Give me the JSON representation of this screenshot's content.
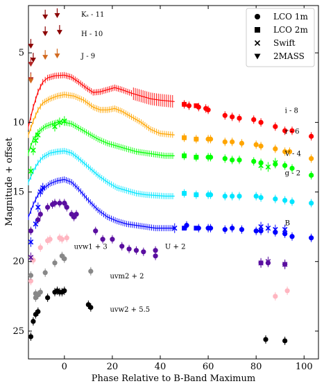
{
  "chart_data": {
    "type": "scatter",
    "title": "",
    "xlabel": "Phase Relative to B-Band Maximum",
    "ylabel": "Magnitude + offset",
    "xlim": [
      -15,
      106
    ],
    "ylim": [
      27.0,
      1.6
    ],
    "y_inverted": true,
    "xticks": [
      0,
      20,
      40,
      60,
      80,
      100
    ],
    "yticks": [
      5,
      10,
      15,
      20,
      25
    ],
    "legend": {
      "position": "top-right",
      "entries": [
        {
          "marker": "circle",
          "label": "LCO 1m"
        },
        {
          "marker": "square",
          "label": "LCO 2m"
        },
        {
          "marker": "x",
          "label": "Swift"
        },
        {
          "marker": "triangle-down",
          "label": "2MASS"
        }
      ]
    },
    "band_labels": [
      {
        "text": "Kₛ - 11",
        "x": 7,
        "y": 2.4
      },
      {
        "text": "H - 10",
        "x": 7,
        "y": 3.8
      },
      {
        "text": "J - 9",
        "x": 7,
        "y": 5.4
      },
      {
        "text": "i - 8",
        "x": 92,
        "y": 9.3
      },
      {
        "text": "r - 6",
        "x": 92,
        "y": 10.8
      },
      {
        "text": "V - 4",
        "x": 92,
        "y": 12.4
      },
      {
        "text": "g - 2",
        "x": 92,
        "y": 13.8
      },
      {
        "text": "B",
        "x": 92,
        "y": 17.4
      },
      {
        "text": "uvw1 + 3",
        "x": 4,
        "y": 19.1
      },
      {
        "text": "U + 2",
        "x": 42,
        "y": 19.1
      },
      {
        "text": "uvm2 + 2",
        "x": 19,
        "y": 21.2
      },
      {
        "text": "uvw2 + 5.5",
        "x": 19,
        "y": 23.6
      }
    ],
    "series": [
      {
        "name": "i - 8",
        "color": "#ff0000",
        "model_max_phase": 46,
        "model": [
          [
            -15,
            10.3
          ],
          [
            -13,
            8.9
          ],
          [
            -11,
            7.8
          ],
          [
            -9,
            7.1
          ],
          [
            -7,
            6.8
          ],
          [
            -4,
            6.65
          ],
          [
            0,
            6.6
          ],
          [
            3,
            6.75
          ],
          [
            6,
            7.1
          ],
          [
            9,
            7.5
          ],
          [
            12,
            7.85
          ],
          [
            15,
            7.8
          ],
          [
            18,
            7.65
          ],
          [
            21,
            7.5
          ],
          [
            24,
            7.65
          ],
          [
            28,
            7.9
          ],
          [
            32,
            8.1
          ],
          [
            36,
            8.3
          ],
          [
            40,
            8.4
          ],
          [
            46,
            8.5
          ]
        ],
        "points": [
          [
            50,
            8.7
          ],
          [
            52,
            8.8
          ],
          [
            56,
            8.9
          ],
          [
            59,
            9.0
          ],
          [
            60,
            9.1
          ],
          [
            67,
            9.5
          ],
          [
            70,
            9.6
          ],
          [
            73,
            9.7
          ],
          [
            79,
            9.8
          ],
          [
            82,
            10.0
          ],
          [
            88,
            10.3
          ],
          [
            92,
            10.6
          ],
          [
            95,
            10.6
          ],
          [
            103,
            11.0
          ]
        ],
        "square_points": [
          [
            50,
            8.7
          ],
          [
            55,
            8.8
          ]
        ]
      },
      {
        "name": "r - 6",
        "color": "#ffa500",
        "model_max_phase": 46,
        "model": [
          [
            -15,
            10.9
          ],
          [
            -13,
            9.9
          ],
          [
            -11,
            9.1
          ],
          [
            -9,
            8.6
          ],
          [
            -6,
            8.3
          ],
          [
            -3,
            8.1
          ],
          [
            0,
            8.0
          ],
          [
            4,
            8.1
          ],
          [
            8,
            8.4
          ],
          [
            12,
            8.9
          ],
          [
            15,
            9.1
          ],
          [
            18,
            9.1
          ],
          [
            21,
            9.0
          ],
          [
            24,
            9.2
          ],
          [
            28,
            9.6
          ],
          [
            32,
            10.0
          ],
          [
            36,
            10.5
          ],
          [
            40,
            10.8
          ],
          [
            46,
            10.9
          ]
        ],
        "points": [
          [
            50,
            11.1
          ],
          [
            55,
            11.2
          ],
          [
            60,
            11.2
          ],
          [
            61,
            11.2
          ],
          [
            67,
            11.4
          ],
          [
            70,
            11.4
          ],
          [
            74,
            11.5
          ],
          [
            80,
            11.6
          ],
          [
            82,
            11.7
          ],
          [
            88,
            11.9
          ],
          [
            92,
            12.1
          ],
          [
            94,
            12.1
          ],
          [
            103,
            12.6
          ]
        ],
        "square_points": [
          [
            50,
            11.1
          ],
          [
            55,
            11.2
          ]
        ]
      },
      {
        "name": "V - 4",
        "color": "#00ff00",
        "model_max_phase": 46,
        "model": [
          [
            -15,
            12.2
          ],
          [
            -13,
            11.2
          ],
          [
            -11,
            10.7
          ],
          [
            -8,
            10.3
          ],
          [
            -5,
            10.1
          ],
          [
            -2,
            9.95
          ],
          [
            0,
            10.0
          ],
          [
            3,
            10.1
          ],
          [
            6,
            10.4
          ],
          [
            10,
            10.8
          ],
          [
            14,
            11.2
          ],
          [
            18,
            11.5
          ],
          [
            22,
            11.7
          ],
          [
            26,
            11.9
          ],
          [
            30,
            12.1
          ],
          [
            34,
            12.2
          ],
          [
            38,
            12.3
          ],
          [
            42,
            12.4
          ],
          [
            46,
            12.4
          ]
        ],
        "points": [
          [
            50,
            12.4
          ],
          [
            55,
            12.5
          ],
          [
            60,
            12.5
          ],
          [
            61,
            12.5
          ],
          [
            67,
            12.6
          ],
          [
            70,
            12.7
          ],
          [
            73,
            12.7
          ],
          [
            79,
            12.8
          ],
          [
            82,
            12.9
          ],
          [
            88,
            13.0
          ],
          [
            92,
            13.1
          ],
          [
            95,
            13.3
          ],
          [
            103,
            13.8
          ]
        ],
        "square_points": [
          [
            50,
            12.4
          ],
          [
            55,
            12.5
          ]
        ]
      },
      {
        "name": "g - 2",
        "color": "#00e5ff",
        "model_max_phase": 46,
        "model": [
          [
            -15,
            14.3
          ],
          [
            -13,
            13.5
          ],
          [
            -11,
            12.9
          ],
          [
            -9,
            12.5
          ],
          [
            -6,
            12.2
          ],
          [
            -3,
            12.1
          ],
          [
            0,
            12.05
          ],
          [
            3,
            12.2
          ],
          [
            6,
            12.6
          ],
          [
            10,
            13.2
          ],
          [
            14,
            13.8
          ],
          [
            18,
            14.3
          ],
          [
            22,
            14.7
          ],
          [
            26,
            14.9
          ],
          [
            30,
            15.1
          ],
          [
            34,
            15.2
          ],
          [
            38,
            15.25
          ],
          [
            42,
            15.3
          ],
          [
            46,
            15.3
          ]
        ],
        "points": [
          [
            50,
            15.1
          ],
          [
            55,
            15.2
          ],
          [
            60,
            15.2
          ],
          [
            61,
            15.2
          ],
          [
            67,
            15.3
          ],
          [
            70,
            15.3
          ],
          [
            73,
            15.3
          ],
          [
            80,
            15.3
          ],
          [
            82,
            15.4
          ],
          [
            88,
            15.5
          ],
          [
            92,
            15.6
          ],
          [
            95,
            15.7
          ],
          [
            103,
            15.8
          ]
        ],
        "square_points": [
          [
            50,
            15.1
          ],
          [
            55,
            15.2
          ]
        ]
      },
      {
        "name": "B",
        "color": "#0000ff",
        "model_max_phase": 46,
        "model": [
          [
            -15,
            16.8
          ],
          [
            -13,
            15.9
          ],
          [
            -11,
            15.2
          ],
          [
            -9,
            14.8
          ],
          [
            -6,
            14.4
          ],
          [
            -3,
            14.2
          ],
          [
            0,
            14.1
          ],
          [
            3,
            14.3
          ],
          [
            6,
            14.8
          ],
          [
            10,
            15.6
          ],
          [
            14,
            16.3
          ],
          [
            18,
            16.8
          ],
          [
            22,
            17.1
          ],
          [
            26,
            17.3
          ],
          [
            30,
            17.4
          ],
          [
            34,
            17.5
          ],
          [
            38,
            17.6
          ],
          [
            42,
            17.6
          ],
          [
            46,
            17.6
          ]
        ],
        "points": [
          [
            51,
            17.4
          ],
          [
            56,
            17.6
          ],
          [
            60,
            17.6
          ],
          [
            61,
            17.6
          ],
          [
            67,
            17.7
          ],
          [
            70,
            17.6
          ],
          [
            74,
            17.7
          ],
          [
            80,
            17.8
          ],
          [
            82,
            17.8
          ],
          [
            88,
            17.9
          ],
          [
            92,
            18.0
          ],
          [
            95,
            18.2
          ],
          [
            103,
            18.3
          ]
        ],
        "square_points": [
          [
            50,
            17.6
          ],
          [
            55,
            17.6
          ]
        ]
      },
      {
        "name": "U + 2",
        "color": "#5a0fa0",
        "model_max_phase": 0,
        "model": [],
        "points": [
          [
            -14,
            17.8
          ],
          [
            -11,
            17.0
          ],
          [
            -10,
            16.6
          ],
          [
            -7,
            16.1
          ],
          [
            -5,
            15.9
          ],
          [
            -4,
            15.8
          ],
          [
            -2,
            15.8
          ],
          [
            0,
            15.8
          ],
          [
            1,
            16.1
          ],
          [
            3,
            16.6
          ],
          [
            4,
            16.8
          ],
          [
            5,
            16.6
          ],
          [
            13,
            17.8
          ],
          [
            16,
            18.4
          ],
          [
            20,
            18.4
          ],
          [
            24,
            18.9
          ],
          [
            27,
            19.1
          ],
          [
            30,
            19.2
          ],
          [
            33,
            19.3
          ],
          [
            38,
            19.2
          ],
          [
            38,
            19.6
          ],
          [
            82,
            20.1
          ],
          [
            85,
            20.1
          ],
          [
            92,
            20.2
          ]
        ],
        "square_points": []
      },
      {
        "name": "uvw1 + 3",
        "color": "#ffb6c1",
        "model_max_phase": 0,
        "model": [],
        "points": [
          [
            -14,
            21.4
          ],
          [
            -13,
            19.9
          ],
          [
            -10,
            19.0
          ],
          [
            -7,
            18.5
          ],
          [
            -6,
            18.4
          ],
          [
            -2,
            18.3
          ],
          [
            -1,
            18.4
          ],
          [
            1,
            18.3
          ],
          [
            88,
            22.5
          ],
          [
            93,
            22.1
          ]
        ],
        "square_points": []
      },
      {
        "name": "uvm2 + 2",
        "color": "#888888",
        "model_max_phase": 0,
        "model": [],
        "points": [
          [
            -14,
            21.0
          ],
          [
            -12,
            22.3
          ],
          [
            -12,
            22.6
          ],
          [
            -11,
            22.4
          ],
          [
            -10,
            22.2
          ],
          [
            -8,
            20.8
          ],
          [
            -4,
            20.1
          ],
          [
            -1,
            19.6
          ],
          [
            0,
            19.8
          ],
          [
            11,
            20.7
          ]
        ],
        "square_points": []
      },
      {
        "name": "uvw2 + 5.5",
        "color": "#000000",
        "model_max_phase": 0,
        "model": [],
        "points": [
          [
            -14,
            25.4
          ],
          [
            -13,
            24.3
          ],
          [
            -12,
            23.8
          ],
          [
            -11,
            23.6
          ],
          [
            -7,
            22.6
          ],
          [
            -4,
            22.2
          ],
          [
            -3,
            22.1
          ],
          [
            -2,
            22.2
          ],
          [
            -1,
            22.2
          ],
          [
            0,
            22.1
          ],
          [
            10,
            23.1
          ],
          [
            11,
            23.3
          ],
          [
            84,
            25.6
          ],
          [
            92,
            25.7
          ]
        ],
        "square_points": []
      }
    ],
    "swift_points": [
      {
        "color": "#0000ff",
        "points": [
          [
            -14,
            18.6
          ],
          [
            -12,
            17.3
          ],
          [
            -11,
            16.1
          ],
          [
            -10,
            15.0
          ],
          [
            -9,
            14.7
          ],
          [
            46,
            17.6
          ],
          [
            82,
            17.5
          ],
          [
            85,
            17.6
          ],
          [
            88,
            17.7
          ],
          [
            92,
            17.7
          ]
        ]
      },
      {
        "color": "#00ff00",
        "points": [
          [
            -14,
            13.5
          ],
          [
            -13,
            12.0
          ],
          [
            -12,
            11.3
          ],
          [
            -11,
            10.9
          ],
          [
            -4,
            10.3
          ],
          [
            -2,
            10.0
          ],
          [
            0,
            9.9
          ],
          [
            82,
            13.1
          ],
          [
            85,
            13.2
          ],
          [
            88,
            12.9
          ]
        ]
      },
      {
        "color": "#5a0fa0",
        "points": [
          [
            -14,
            19.7
          ],
          [
            82,
            20.1
          ],
          [
            85,
            20.0
          ],
          [
            92,
            20.2
          ]
        ]
      }
    ],
    "nir_series": [
      {
        "name": "Kₛ - 11",
        "color": "#8b0000",
        "points": [
          [
            -14,
            4.5
          ],
          [
            -13,
            5.5
          ],
          [
            -8,
            2.4
          ],
          [
            -8,
            3.6
          ],
          [
            -3,
            2.3
          ],
          [
            -2,
            3.5
          ]
        ]
      },
      {
        "name": "H - 10",
        "color": "#b22222",
        "points": [
          [
            -14,
            5.8
          ],
          [
            -14,
            6.9
          ]
        ]
      },
      {
        "name": "J - 9",
        "color": "#d2691e",
        "points": [
          [
            -14,
            7.0
          ],
          [
            -8,
            5.3
          ],
          [
            -3,
            5.2
          ]
        ]
      }
    ]
  }
}
